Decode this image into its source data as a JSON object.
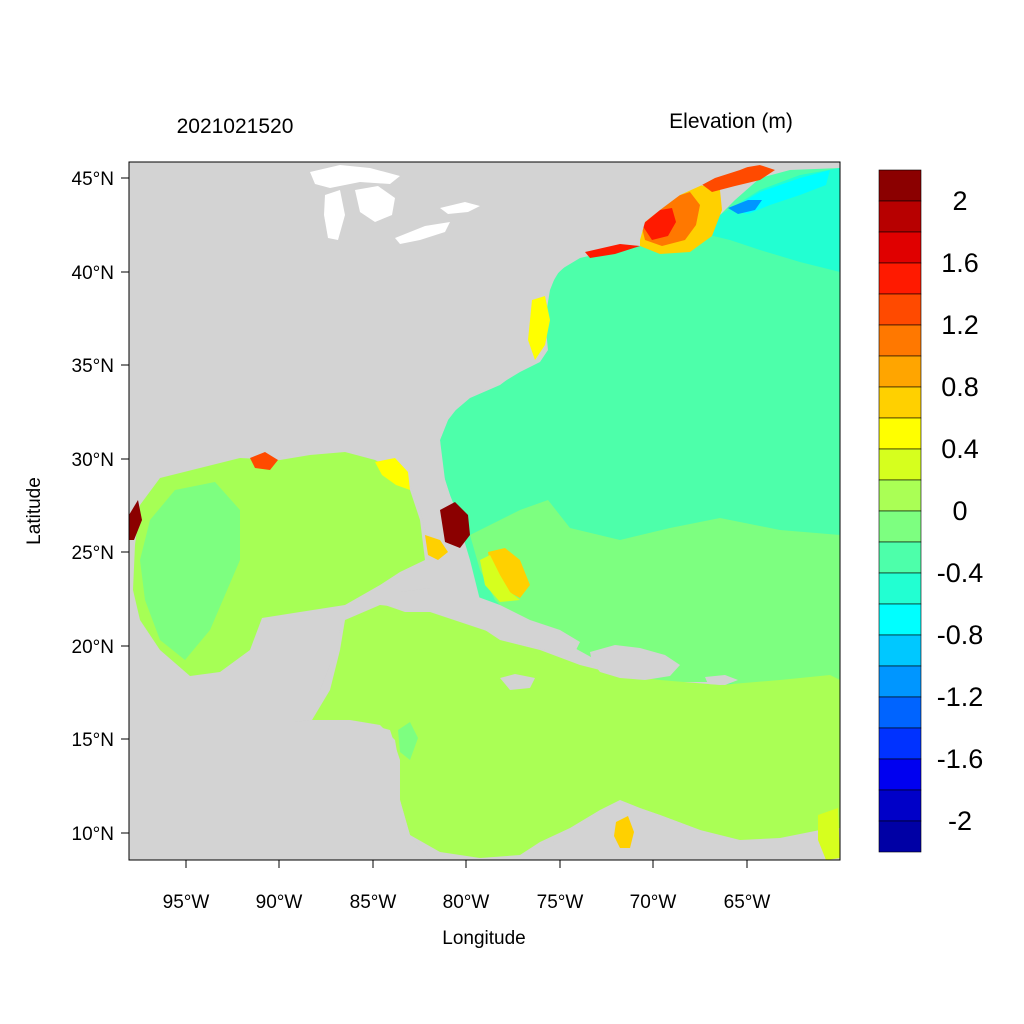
{
  "header": {
    "datetime": "2021021520",
    "variable": "Elevation (m)"
  },
  "axes": {
    "xlabel": "Longitude",
    "ylabel": "Latitude",
    "xticks": [
      "95°W",
      "90°W",
      "85°W",
      "80°W",
      "75°W",
      "70°W",
      "65°W"
    ],
    "yticks": [
      "45°N",
      "40°N",
      "35°N",
      "30°N",
      "25°N",
      "20°N",
      "15°N",
      "10°N"
    ]
  },
  "colorbar": {
    "labels": [
      "2",
      "1.6",
      "1.2",
      "0.8",
      "0.4",
      "0",
      "-0.4",
      "-0.8",
      "-1.2",
      "-1.6",
      "-2"
    ],
    "colors": [
      "#8b0000",
      "#b70000",
      "#e00000",
      "#ff1a00",
      "#ff4a00",
      "#ff7800",
      "#ffa500",
      "#ffd000",
      "#ffff00",
      "#d6ff1e",
      "#aaff55",
      "#7dff80",
      "#4dffaa",
      "#22ffd2",
      "#00ffff",
      "#00c8ff",
      "#0096ff",
      "#0064ff",
      "#0032ff",
      "#0000f0",
      "#0000c8",
      "#0000a5"
    ]
  },
  "colors": {
    "land": "#d3d3d3",
    "water_white": "#ffffff",
    "gulf": "#a6ff55",
    "caribbean": "#aaff55",
    "atlantic": "#4dffaa",
    "south_atlantic": "#7dff80"
  }
}
